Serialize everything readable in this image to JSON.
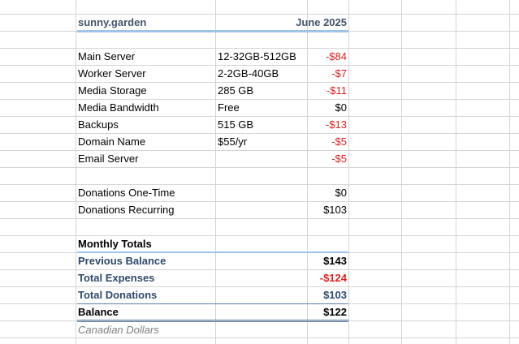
{
  "header": {
    "title": "sunny.garden",
    "period": "June 2025"
  },
  "expenses": [
    {
      "label": "Main Server",
      "spec": "12-32GB-512GB",
      "amount": "-$84"
    },
    {
      "label": "Worker Server",
      "spec": "2-2GB-40GB",
      "amount": "-$7"
    },
    {
      "label": "Media Storage",
      "spec": "285 GB",
      "amount": "-$11"
    },
    {
      "label": "Media Bandwidth",
      "spec": "Free",
      "amount": "$0"
    },
    {
      "label": "Backups",
      "spec": "515 GB",
      "amount": "-$13"
    },
    {
      "label": "Domain Name",
      "spec": "$55/yr",
      "amount": "-$5"
    },
    {
      "label": "Email Server",
      "spec": "",
      "amount": "-$5"
    }
  ],
  "donations": [
    {
      "label": "Donations One-Time",
      "amount": "$0"
    },
    {
      "label": "Donations Recurring",
      "amount": "$103"
    }
  ],
  "totals": {
    "heading": "Monthly Totals",
    "previous_balance_label": "Previous Balance",
    "previous_balance": "$143",
    "total_expenses_label": "Total Expenses",
    "total_expenses": "-$124",
    "total_donations_label": "Total Donations",
    "total_donations": "$103",
    "balance_label": "Balance",
    "balance": "$122"
  },
  "footnote": "Canadian Dollars"
}
